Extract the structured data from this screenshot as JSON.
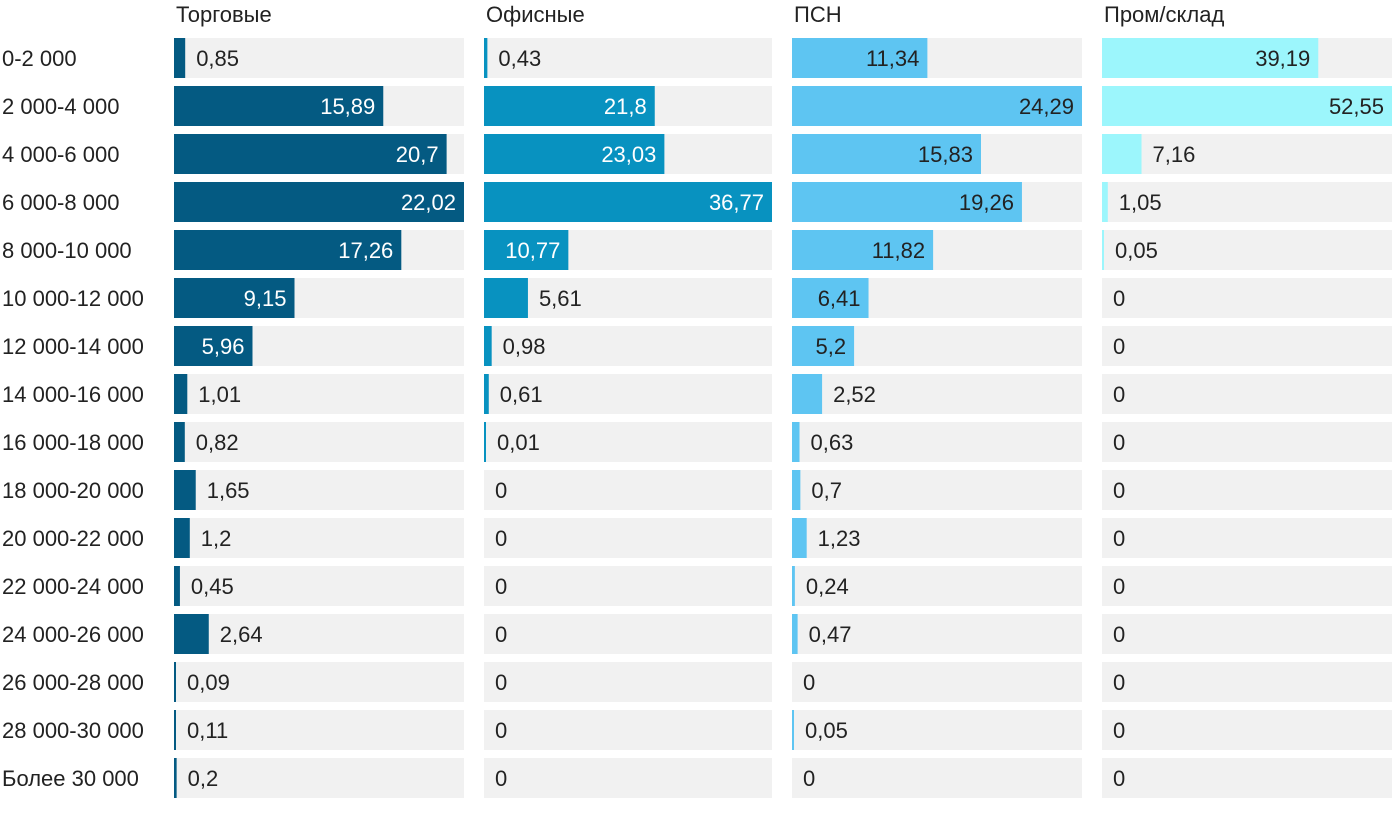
{
  "chart_data": {
    "type": "bar",
    "orientation": "horizontal",
    "layout": "small-multiples",
    "categories": [
      "0-2 000",
      "2 000-4 000",
      "4 000-6 000",
      "6 000-8 000",
      "8 000-10 000",
      "10 000-12 000",
      "12 000-14 000",
      "14 000-16 000",
      "16 000-18 000",
      "18 000-20 000",
      "20 000-22 000",
      "22 000-24 000",
      "24 000-26 000",
      "26 000-28 000",
      "28 000-30 000",
      "Более 30 000"
    ],
    "series": [
      {
        "name": "Торговые",
        "color": "#045a82",
        "values": [
          0.85,
          15.89,
          20.7,
          22.02,
          17.26,
          9.15,
          5.96,
          1.01,
          0.82,
          1.65,
          1.2,
          0.45,
          2.64,
          0.09,
          0.11,
          0.2
        ],
        "labels": [
          "0,85",
          "15,89",
          "20,7",
          "22,02",
          "17,26",
          "9,15",
          "5,96",
          "1,01",
          "0,82",
          "1,65",
          "1,2",
          "0,45",
          "2,64",
          "0,09",
          "0,11",
          "0,2"
        ],
        "xlim": [
          0,
          22.02
        ]
      },
      {
        "name": "Офисные",
        "color": "#0892c0",
        "values": [
          0.43,
          21.8,
          23.03,
          36.77,
          10.77,
          5.61,
          0.98,
          0.61,
          0.01,
          0,
          0,
          0,
          0,
          0,
          0,
          0
        ],
        "labels": [
          "0,43",
          "21,8",
          "23,03",
          "36,77",
          "10,77",
          "5,61",
          "0,98",
          "0,61",
          "0,01",
          "0",
          "0",
          "0",
          "0",
          "0",
          "0",
          "0"
        ],
        "xlim": [
          0,
          36.77
        ]
      },
      {
        "name": "ПСН",
        "color": "#5ec5f2",
        "values": [
          11.34,
          24.29,
          15.83,
          19.26,
          11.82,
          6.41,
          5.2,
          2.52,
          0.63,
          0.7,
          1.23,
          0.24,
          0.47,
          0,
          0.05,
          0
        ],
        "labels": [
          "11,34",
          "24,29",
          "15,83",
          "19,26",
          "11,82",
          "6,41",
          "5,2",
          "2,52",
          "0,63",
          "0,7",
          "1,23",
          "0,24",
          "0,47",
          "0",
          "0,05",
          "0"
        ],
        "xlim": [
          0,
          24.29
        ]
      },
      {
        "name": "Пром/склад",
        "color": "#9cf6fc",
        "values": [
          39.19,
          52.55,
          7.16,
          1.05,
          0.05,
          0,
          0,
          0,
          0,
          0,
          0,
          0,
          0,
          0,
          0,
          0
        ],
        "labels": [
          "39,19",
          "52,55",
          "7,16",
          "1,05",
          "0,05",
          "0",
          "0",
          "0",
          "0",
          "0",
          "0",
          "0",
          "0",
          "0",
          "0",
          "0"
        ],
        "xlim": [
          0,
          52.55
        ]
      }
    ],
    "track_color": "#f1f1f1",
    "grid": false,
    "legend": "none"
  }
}
